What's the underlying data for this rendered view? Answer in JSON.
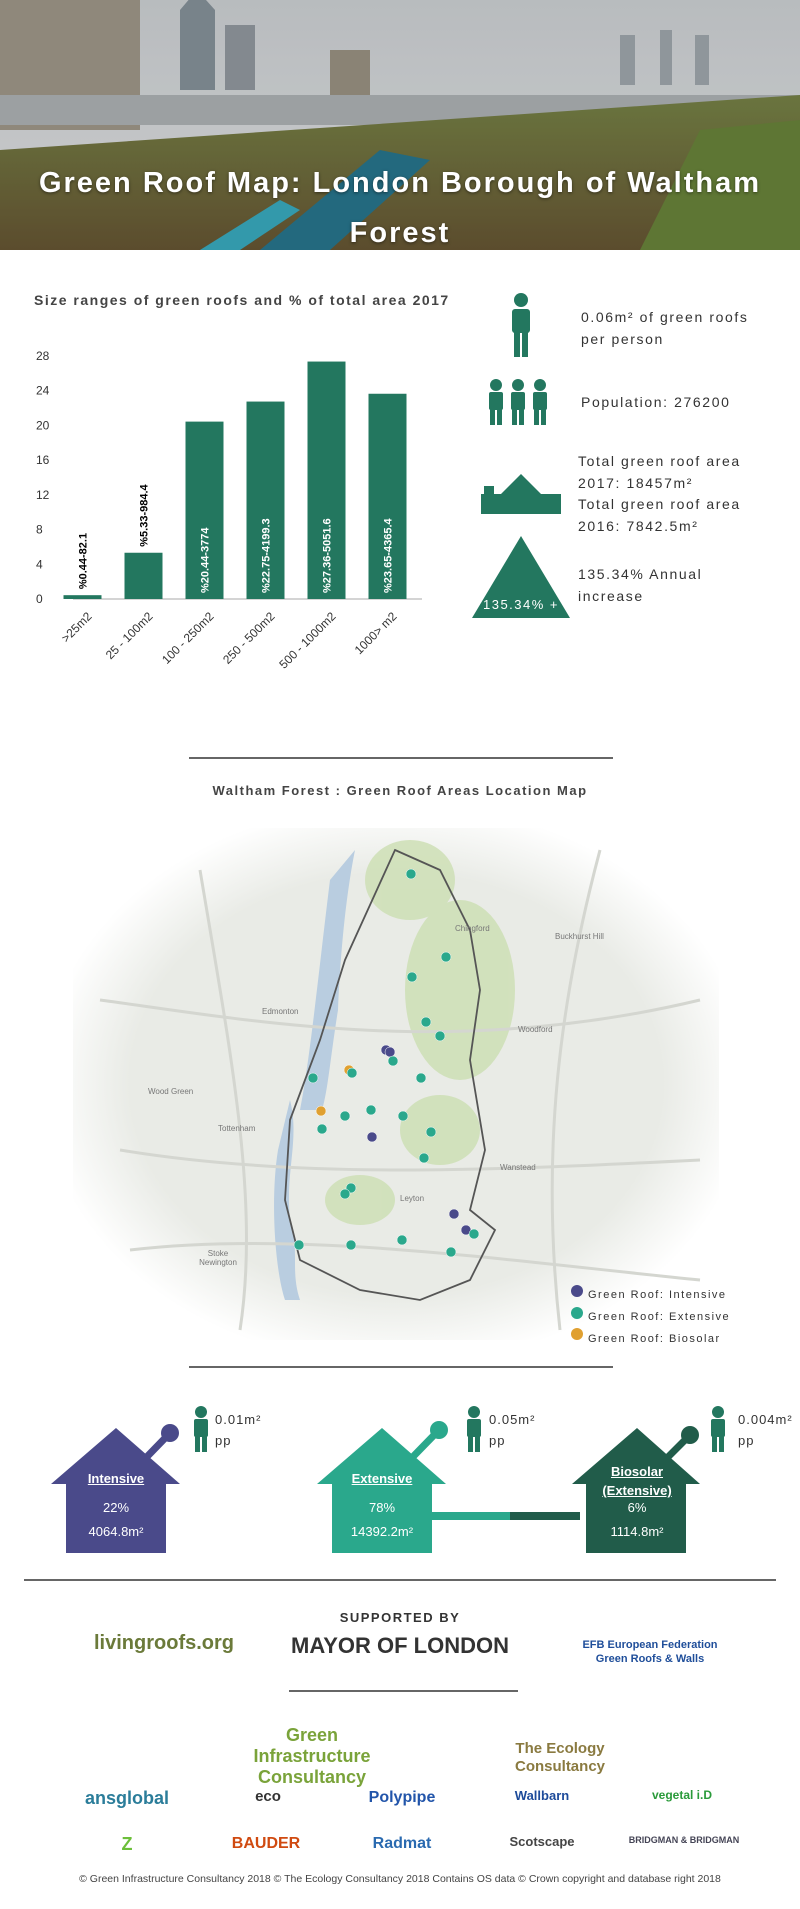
{
  "header": {
    "title": "Green Roof Map: London Borough of Waltham Forest"
  },
  "chart_data": {
    "type": "bar",
    "title": "Size ranges of green roofs and % of total area 2017",
    "categories": [
      ">25m2",
      "25 - 100m2",
      "100 - 250m2",
      "250 - 500m2",
      "500 - 1000m2",
      "1000> m2"
    ],
    "values": [
      0.44,
      5.33,
      20.44,
      22.75,
      27.36,
      23.65
    ],
    "value_labels": [
      "%0.44-82.1",
      "%5.33-984.4",
      "%20.44-3774",
      "%22.75-4199.3",
      "%27.36-5051.6",
      "%23.65-4365.4"
    ],
    "color": "#23775f",
    "ylim": [
      0,
      28
    ],
    "yticks": [
      0,
      4,
      8,
      12,
      16,
      20,
      24,
      28
    ],
    "grid": false
  },
  "stats": {
    "per_person": [
      "0.06m² of green roofs",
      "per person"
    ],
    "population": "Population: 276200",
    "area": [
      "Total green roof area",
      "2017: 18457m²",
      "Total green roof area",
      "2016: 7842.5m²"
    ],
    "increase": [
      "135.34% Annual",
      "increase"
    ],
    "increase_badge": "135.34% +"
  },
  "map": {
    "title": "Waltham Forest : Green Roof Areas Location Map",
    "places": [
      "Chingford",
      "Buckhurst Hill",
      "Edmonton",
      "Woodford",
      "Tottenham",
      "Wood Green",
      "Wanstead",
      "Leyton",
      "Stoke Newington"
    ],
    "legend": [
      "Green Roof: Intensive",
      "Green Roof: Extensive",
      "Green Roof: Biosolar"
    ]
  },
  "types": [
    {
      "name": "Intensive",
      "share": "22%",
      "area": "4064.8m²",
      "per_person": "0.01m²",
      "unit": "pp"
    },
    {
      "name": "Extensive",
      "share": "78%",
      "area": "14392.2m²",
      "per_person": "0.05m²",
      "unit": "pp"
    },
    {
      "name": "Biosolar (Extensive)",
      "share": "6%",
      "area": "1114.8m²",
      "per_person": "0.004m²",
      "unit": "pp"
    }
  ],
  "sponsors": {
    "supported_by": "SUPPORTED BY",
    "mayor": "MAYOR OF LONDON",
    "logos": [
      "livingroofs.org",
      "EFB European Federation Green Roofs & Walls",
      "Green Infrastructure Consultancy",
      "The Ecology Consultancy",
      "ansglobal",
      "eco",
      "Polypipe",
      "Wallbarn",
      "vegetal i.D",
      "Z",
      "BAUDER",
      "Radmat",
      "Scotscape",
      "BRIDGMAN & BRIDGMAN"
    ]
  },
  "footer": "© Green Infrastructure Consultancy 2018 © The Ecology Consultancy 2018 Contains OS data © Crown copyright and database right 2018"
}
